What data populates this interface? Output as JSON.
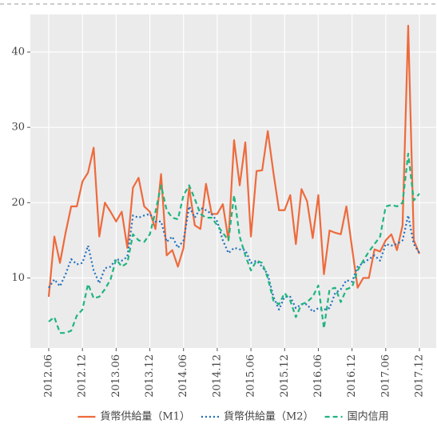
{
  "chart_data": {
    "type": "line",
    "categories": [
      "2012.06",
      null,
      null,
      null,
      null,
      null,
      "2012.12",
      null,
      null,
      null,
      null,
      null,
      "2013.06",
      null,
      null,
      null,
      null,
      null,
      "2013.12",
      null,
      null,
      null,
      null,
      null,
      "2014.06",
      null,
      null,
      null,
      null,
      null,
      "2014.12",
      null,
      null,
      null,
      null,
      null,
      "2015.06",
      null,
      null,
      null,
      null,
      null,
      "2015.12",
      null,
      null,
      null,
      null,
      null,
      "2016.06",
      null,
      null,
      null,
      null,
      null,
      "2016.12",
      null,
      null,
      null,
      null,
      null,
      "2017.06",
      null,
      null,
      null,
      null,
      null,
      "2017.12"
    ],
    "series": [
      {
        "name": "貨幣供給量（M1）",
        "color": "#ee6a3c",
        "style": "solid",
        "values": [
          7.5,
          15.5,
          12,
          16,
          19.5,
          19.5,
          22.8,
          24,
          27.3,
          15.5,
          20,
          18.8,
          17.5,
          18.8,
          14,
          22,
          23.3,
          19.5,
          18.8,
          16.5,
          23.8,
          13,
          13.7,
          11.5,
          14,
          22,
          17,
          16.5,
          22.5,
          18.5,
          18.5,
          19.8,
          15,
          28.3,
          22.3,
          28,
          15.5,
          24.2,
          24.3,
          29.5,
          24,
          19,
          19,
          21,
          14.5,
          21.8,
          20.2,
          15.3,
          21,
          10.5,
          16.3,
          16,
          15.8,
          19.5,
          14,
          8.7,
          10,
          10,
          13.8,
          13.5,
          15,
          15.8,
          13.7,
          17,
          43.5,
          15,
          13.2
        ]
      },
      {
        "name": "貨幣供給量（M2）",
        "color": "#1f6fbf",
        "style": "dotted",
        "values": [
          8.7,
          9.8,
          8.9,
          10.5,
          12.5,
          11.8,
          12,
          14.3,
          11,
          9.3,
          11.3,
          11.5,
          12.5,
          12.3,
          12.8,
          18.3,
          18,
          18.3,
          18.5,
          17.5,
          17.5,
          14.8,
          15.5,
          14,
          15,
          19.5,
          18,
          19.3,
          19,
          18.5,
          17.5,
          15,
          13.3,
          14,
          13.8,
          13.7,
          12,
          12.3,
          11.5,
          10.5,
          7.5,
          5.8,
          7.5,
          7.5,
          6,
          6.5,
          6.5,
          5.5,
          6,
          5.8,
          6,
          8,
          8.5,
          9.7,
          9.5,
          11.5,
          12,
          12.5,
          13,
          12.3,
          14.5,
          14.3,
          14.5,
          15,
          18.3,
          14.5,
          13.3
        ]
      },
      {
        "name": "国内信用",
        "color": "#1fb57f",
        "style": "dashed",
        "values": [
          4.2,
          4.8,
          2.7,
          2.7,
          3,
          5,
          5.8,
          9.2,
          7.3,
          7.5,
          8.5,
          9.8,
          12.5,
          11.5,
          12,
          15.8,
          15,
          14.8,
          15.8,
          18.8,
          22.3,
          19,
          18,
          17.8,
          21,
          22.3,
          20.5,
          18.5,
          18,
          18,
          17,
          16,
          15,
          21,
          15.5,
          13,
          11,
          12.3,
          12,
          10,
          7,
          6.5,
          8,
          7,
          4.8,
          6.5,
          6.8,
          7.5,
          9,
          3.3,
          8.5,
          8.7,
          6.8,
          8.5,
          8.8,
          11,
          12.3,
          13.5,
          14.5,
          15.5,
          19.5,
          19.7,
          19.5,
          20,
          26.5,
          20.3,
          21.2
        ]
      }
    ],
    "ylim": [
      0.7,
      45
    ],
    "yticks": [
      10,
      20,
      30,
      40
    ],
    "grid": true,
    "legend": "bottom"
  }
}
